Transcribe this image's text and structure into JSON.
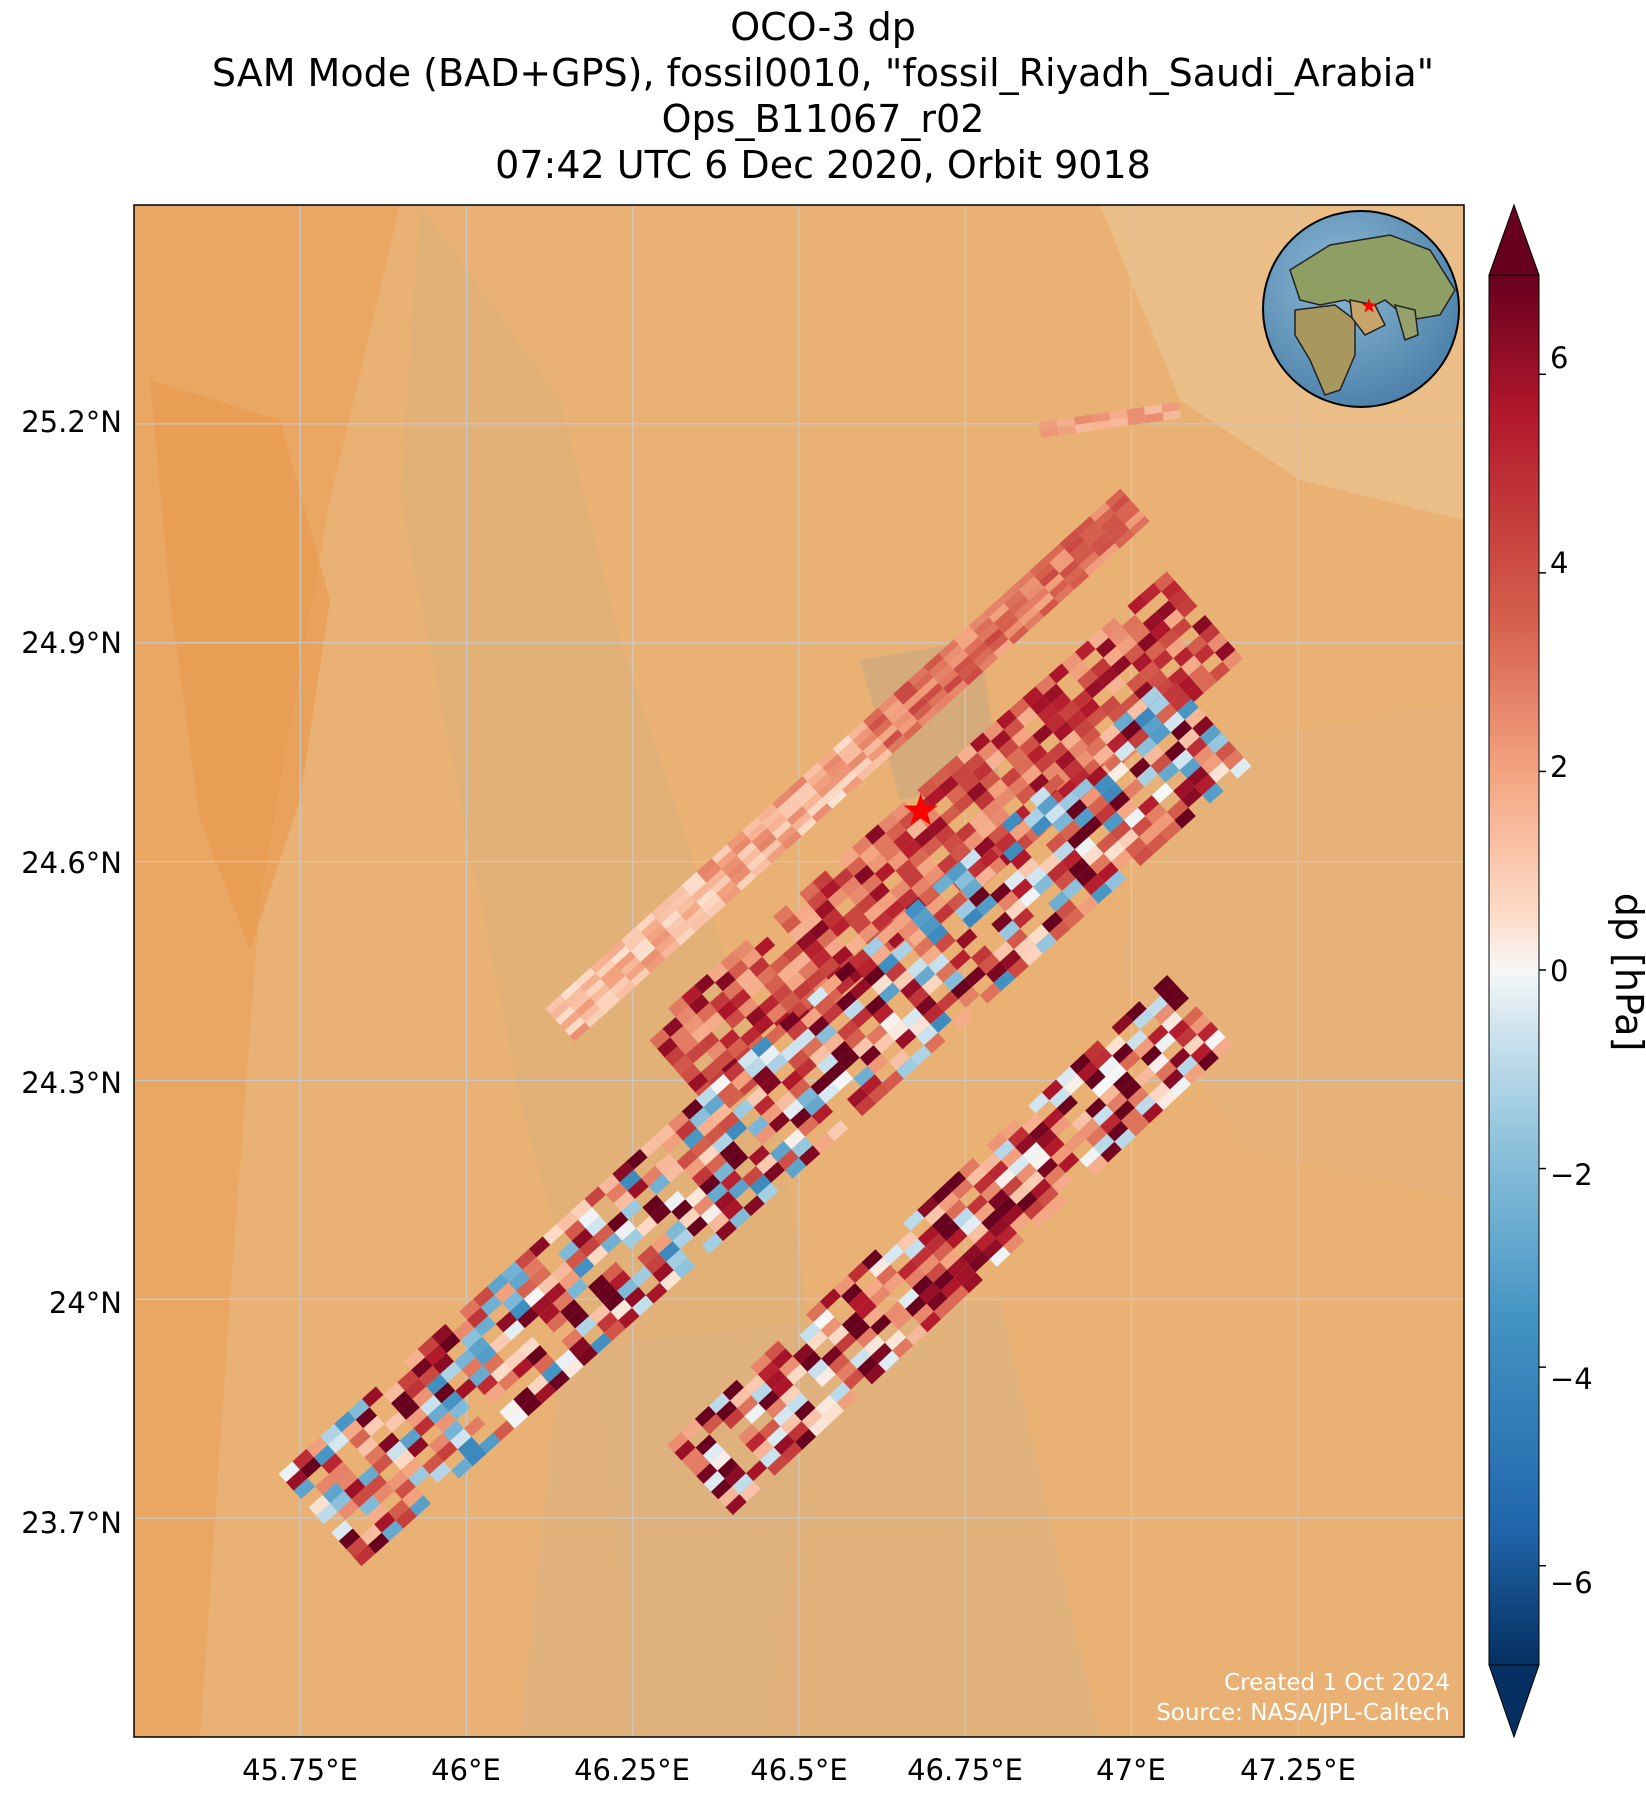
{
  "title": {
    "line1": "OCO-3 dp",
    "line2": "SAM Mode (BAD+GPS), fossil0010, \"fossil_Riyadh_Saudi_Arabia\"",
    "line3": "Ops_B11067_r02",
    "line4": "07:42 UTC 6 Dec 2020, Orbit 9018"
  },
  "map": {
    "lon_range": [
      45.5,
      47.5
    ],
    "lat_range": [
      23.4,
      25.5
    ],
    "lon_ticks": [
      "45.75°E",
      "46°E",
      "46.25°E",
      "46.5°E",
      "46.75°E",
      "47°E",
      "47.25°E"
    ],
    "lat_ticks": [
      "25.2°N",
      "24.9°N",
      "24.6°N",
      "24.3°N",
      "24°N",
      "23.7°N"
    ],
    "gridlines": true,
    "target_marker": {
      "name": "fossil_Riyadh_Saudi_Arabia",
      "lon": 46.68,
      "lat": 24.68,
      "symbol": "star",
      "color": "#ff0000"
    },
    "inset_globe": {
      "position": "top-right",
      "marker_color": "#ff0000"
    }
  },
  "colorbar": {
    "label": "dp [hPa]",
    "colormap": "RdBu_r",
    "vmin": -7,
    "vmax": 7,
    "extend": "both",
    "ticks": [
      "6",
      "4",
      "2",
      "0",
      "−2",
      "−4",
      "−6"
    ],
    "tick_values": [
      6,
      4,
      2,
      0,
      -2,
      -4,
      -6
    ]
  },
  "credits": {
    "line1": "Created 1 Oct 2024",
    "line2": "Source: NASA/JPL-Caltech"
  },
  "colors": {
    "desert_base": "#e9b274",
    "desert_dark": "#d9995a",
    "cmap_neg": "#0b3b6e",
    "cmap_mid": "#f7f7f7",
    "cmap_pos": "#6b0a1e"
  }
}
